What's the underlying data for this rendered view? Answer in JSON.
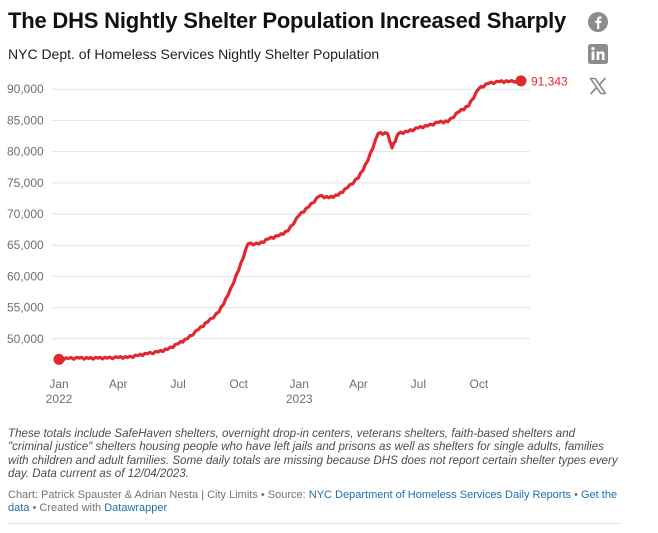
{
  "header": {
    "title": "The DHS Nightly Shelter Population Increased Sharply",
    "subtitle": "NYC Dept. of Homeless Services Nightly Shelter Population"
  },
  "share": {
    "icons": [
      "facebook-icon",
      "linkedin-icon",
      "x-icon"
    ],
    "color": "#8c8c8c"
  },
  "chart_data": {
    "type": "line",
    "title": "",
    "xlabel": "",
    "ylabel": "",
    "series": [
      {
        "color": "#e0282e",
        "points": [
          [
            "2022-01-01",
            46700
          ],
          [
            "2022-01-15",
            46850
          ],
          [
            "2022-02-01",
            46900
          ],
          [
            "2022-02-15",
            46850
          ],
          [
            "2022-03-01",
            46900
          ],
          [
            "2022-03-15",
            46900
          ],
          [
            "2022-04-01",
            47000
          ],
          [
            "2022-04-15",
            47000
          ],
          [
            "2022-05-01",
            47300
          ],
          [
            "2022-05-15",
            47600
          ],
          [
            "2022-06-01",
            47900
          ],
          [
            "2022-06-15",
            48300
          ],
          [
            "2022-07-01",
            49200
          ],
          [
            "2022-07-15",
            50000
          ],
          [
            "2022-08-01",
            51500
          ],
          [
            "2022-08-15",
            52700
          ],
          [
            "2022-09-01",
            54300
          ],
          [
            "2022-09-15",
            57000
          ],
          [
            "2022-10-01",
            61000
          ],
          [
            "2022-10-15",
            65200
          ],
          [
            "2022-11-01",
            65200
          ],
          [
            "2022-11-15",
            66000
          ],
          [
            "2022-12-01",
            66500
          ],
          [
            "2022-12-15",
            67300
          ],
          [
            "2023-01-01",
            69800
          ],
          [
            "2023-01-15",
            71100
          ],
          [
            "2023-02-01",
            72900
          ],
          [
            "2023-02-15",
            72600
          ],
          [
            "2023-03-01",
            73000
          ],
          [
            "2023-03-15",
            74200
          ],
          [
            "2023-04-01",
            75800
          ],
          [
            "2023-04-15",
            78500
          ],
          [
            "2023-05-01",
            82900
          ],
          [
            "2023-05-15",
            82900
          ],
          [
            "2023-05-22",
            80600
          ],
          [
            "2023-06-01",
            82900
          ],
          [
            "2023-06-15",
            83200
          ],
          [
            "2023-07-01",
            83800
          ],
          [
            "2023-07-15",
            84100
          ],
          [
            "2023-08-01",
            84700
          ],
          [
            "2023-08-15",
            84800
          ],
          [
            "2023-09-01",
            86400
          ],
          [
            "2023-09-15",
            87300
          ],
          [
            "2023-10-01",
            90100
          ],
          [
            "2023-10-15",
            90900
          ],
          [
            "2023-11-01",
            91200
          ],
          [
            "2023-11-15",
            91200
          ],
          [
            "2023-12-04",
            91343
          ]
        ]
      }
    ],
    "y_ticks": [
      50000,
      55000,
      60000,
      65000,
      70000,
      75000,
      80000,
      85000,
      90000
    ],
    "y_tick_labels": [
      "50,000",
      "55,000",
      "60,000",
      "65,000",
      "70,000",
      "75,000",
      "80,000",
      "85,000",
      "90,000"
    ],
    "ylim": [
      45000,
      91800
    ],
    "xlim": [
      "2022-01-01",
      "2023-12-04"
    ],
    "x_ticks": [
      {
        "date": "2022-01-01",
        "label": "Jan",
        "year": "2022"
      },
      {
        "date": "2022-04-01",
        "label": "Apr",
        "year": ""
      },
      {
        "date": "2022-07-01",
        "label": "Jul",
        "year": ""
      },
      {
        "date": "2022-10-01",
        "label": "Oct",
        "year": ""
      },
      {
        "date": "2023-01-01",
        "label": "Jan",
        "year": "2023"
      },
      {
        "date": "2023-04-01",
        "label": "Apr",
        "year": ""
      },
      {
        "date": "2023-07-01",
        "label": "Jul",
        "year": ""
      },
      {
        "date": "2023-10-01",
        "label": "Oct",
        "year": ""
      }
    ],
    "end_label": "91,343",
    "grid": true,
    "legend": "none"
  },
  "notes": "These totals include SafeHaven shelters, overnight drop-in centers, veterans shelters, faith-based shelters and \"criminal justice\" shelters housing people who have left jails and prisons as well as shelters for single adults, families with children and adult families. Some daily totals are missing because DHS does not report certain shelter types every day. Data current as of 12/04/2023.",
  "footer": {
    "credit": "Chart: Patrick Spauster & Adrian Nesta | City Limits • Source: ",
    "source_link": "NYC Department of Homeless Services Daily Reports",
    "sep1": " • ",
    "data_link": "Get the data",
    "sep2": " • Created with ",
    "tool_link": "Datawrapper"
  }
}
